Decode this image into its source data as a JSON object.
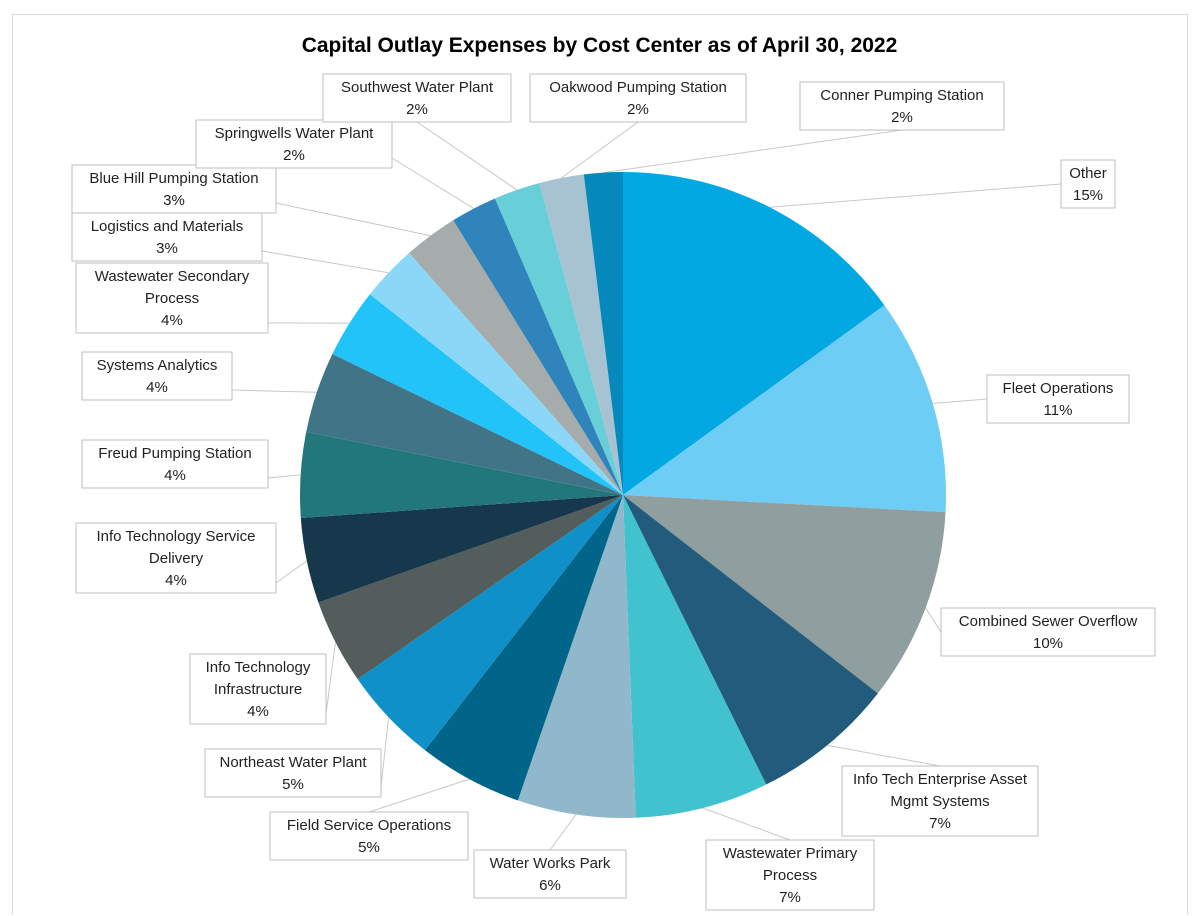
{
  "chart_data": {
    "type": "pie",
    "title": "Capital Outlay Expenses by Cost Center as of April 30, 2022",
    "slices": [
      {
        "label": "Other",
        "percent_label": "15%",
        "value": 15.5,
        "color": "#02a8e2"
      },
      {
        "label": "Fleet Operations",
        "percent_label": "11%",
        "value": 11.2,
        "color": "#6dcdf4"
      },
      {
        "label": "Combined Sewer Overflow",
        "percent_label": "10%",
        "value": 10.0,
        "color": "#8f9e9e"
      },
      {
        "label": "Info Tech Enterprise Asset Mgmt Systems",
        "percent_label": "7%",
        "value": 7.4,
        "color": "#235b7c"
      },
      {
        "label": "Wastewater Primary Process",
        "percent_label": "7%",
        "value": 6.9,
        "color": "#40c2cf"
      },
      {
        "label": "Water Works Park",
        "percent_label": "6%",
        "value": 6.1,
        "color": "#91b8ca"
      },
      {
        "label": "Field Service Operations",
        "percent_label": "5%",
        "value": 5.4,
        "color": "#006589"
      },
      {
        "label": "Northeast Water Plant",
        "percent_label": "5%",
        "value": 5.0,
        "color": "#0f90c8"
      },
      {
        "label": "Info Technology Infrastructure",
        "percent_label": "4%",
        "value": 4.4,
        "color": "#525d5c"
      },
      {
        "label": "Info Technology Service Delivery",
        "percent_label": "4%",
        "value": 4.4,
        "color": "#17384c"
      },
      {
        "label": "Freud Pumping Station",
        "percent_label": "4%",
        "value": 4.4,
        "color": "#22777b"
      },
      {
        "label": "Systems Analytics",
        "percent_label": "4%",
        "value": 4.2,
        "color": "#427487"
      },
      {
        "label": "Wastewater Secondary Process",
        "percent_label": "4%",
        "value": 3.6,
        "color": "#21c3f8"
      },
      {
        "label": "Logistics and Materials",
        "percent_label": "3%",
        "value": 2.9,
        "color": "#8ad7f7"
      },
      {
        "label": "Blue Hill Pumping Station",
        "percent_label": "3%",
        "value": 2.8,
        "color": "#a6acac"
      },
      {
        "label": "Springwells Water Plant",
        "percent_label": "2%",
        "value": 2.4,
        "color": "#2f84bc"
      },
      {
        "label": "Southwest Water Plant",
        "percent_label": "2%",
        "value": 2.4,
        "color": "#68cfd9"
      },
      {
        "label": "Oakwood Pumping Station",
        "percent_label": "2%",
        "value": 2.3,
        "color": "#a7c3d2"
      },
      {
        "label": "Conner Pumping Station",
        "percent_label": "2%",
        "value": 2.0,
        "color": "#0588bb"
      }
    ]
  }
}
